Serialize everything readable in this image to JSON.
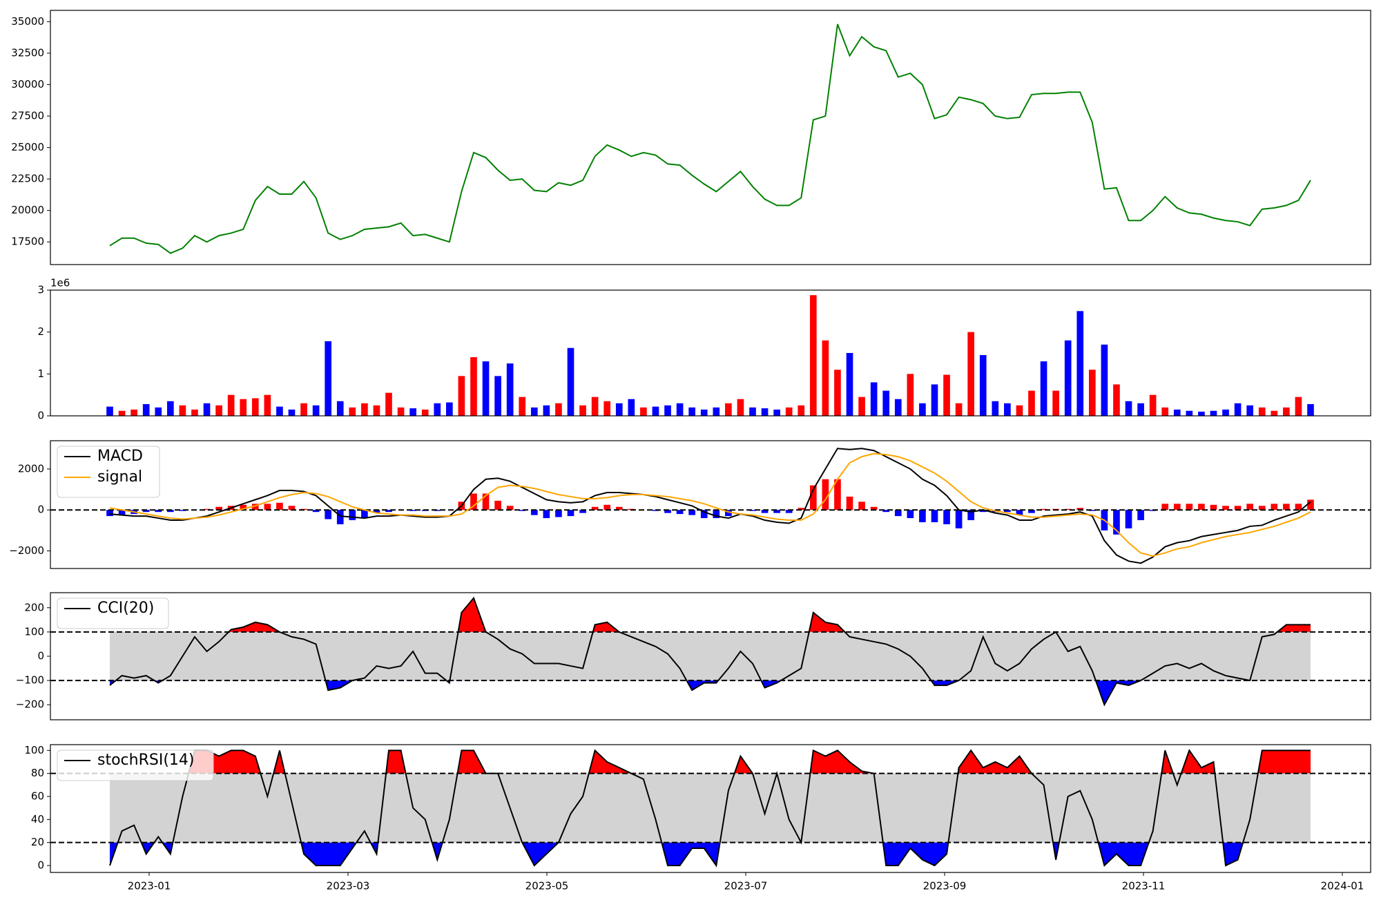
{
  "chart_data": [
    {
      "type": "line",
      "ylim": [
        15700,
        35900
      ],
      "yticks": [
        17500,
        20000,
        22500,
        25000,
        27500,
        30000,
        32500,
        35000
      ],
      "series": [
        {
          "color": "green",
          "values": [
            17200,
            17800,
            17800,
            17400,
            17300,
            16600,
            17000,
            18000,
            17500,
            18000,
            18200,
            18500,
            20800,
            21900,
            21300,
            21300,
            22300,
            21000,
            18200,
            17700,
            18000,
            18500,
            18600,
            18700,
            19000,
            18000,
            18100,
            17800,
            17500,
            21500,
            24600,
            24200,
            23200,
            22400,
            22500,
            21600,
            21500,
            22200,
            22000,
            22400,
            24300,
            25200,
            24800,
            24300,
            24600,
            24400,
            23700,
            23600,
            22800,
            22100,
            21500,
            22300,
            23100,
            21900,
            20900,
            20400,
            20400,
            21000,
            27200,
            27500,
            34800,
            32300,
            33800,
            33000,
            32700,
            30600,
            30900,
            30000,
            27300,
            27600,
            29000,
            28800,
            28500,
            27500,
            27300,
            27400,
            29200,
            29300,
            29300,
            29400,
            29400,
            27000,
            21700,
            21800,
            19200,
            19200,
            20000,
            21100,
            20200,
            19800,
            19700,
            19400,
            19200,
            19100,
            18800,
            20100,
            20200,
            20400,
            20800,
            22400
          ]
        }
      ]
    },
    {
      "type": "bar",
      "ylim": [
        0,
        3
      ],
      "yticks": [
        0,
        1,
        2,
        3
      ],
      "offset_label": "1e6",
      "values": [
        0.22,
        0.12,
        0.15,
        0.28,
        0.2,
        0.35,
        0.25,
        0.15,
        0.3,
        0.25,
        0.5,
        0.4,
        0.42,
        0.5,
        0.22,
        0.15,
        0.3,
        0.25,
        1.78,
        0.35,
        0.2,
        0.3,
        0.25,
        0.55,
        0.2,
        0.18,
        0.15,
        0.3,
        0.32,
        0.95,
        1.4,
        1.3,
        0.95,
        1.25,
        0.45,
        0.2,
        0.25,
        0.3,
        1.62,
        0.25,
        0.45,
        0.35,
        0.3,
        0.4,
        0.2,
        0.22,
        0.25,
        0.3,
        0.2,
        0.15,
        0.2,
        0.3,
        0.4,
        0.2,
        0.18,
        0.15,
        0.2,
        0.25,
        2.88,
        1.8,
        1.1,
        1.5,
        0.45,
        0.8,
        0.6,
        0.4,
        1.0,
        0.3,
        0.75,
        0.98,
        0.3,
        2.0,
        1.45,
        0.35,
        0.3,
        0.25,
        0.6,
        1.3,
        0.6,
        1.8,
        2.5,
        1.1,
        1.7,
        0.75,
        0.35,
        0.3,
        0.5,
        0.2,
        0.15,
        0.12,
        0.1,
        0.12,
        0.15,
        0.3,
        0.25,
        0.2,
        0.12,
        0.2,
        0.45,
        0.28
      ],
      "colors": [
        "blue",
        "red",
        "red",
        "blue",
        "blue",
        "blue",
        "red",
        "red",
        "blue",
        "red",
        "red",
        "red",
        "red",
        "red",
        "blue",
        "blue",
        "red",
        "blue",
        "blue",
        "blue",
        "red",
        "red",
        "red",
        "red",
        "red",
        "blue",
        "red",
        "blue",
        "blue",
        "red",
        "red",
        "blue",
        "blue",
        "blue",
        "red",
        "blue",
        "blue",
        "red",
        "blue",
        "red",
        "red",
        "red",
        "blue",
        "blue",
        "red",
        "blue",
        "blue",
        "blue",
        "blue",
        "blue",
        "blue",
        "red",
        "red",
        "blue",
        "blue",
        "blue",
        "red",
        "red",
        "red",
        "red",
        "red",
        "blue",
        "red",
        "blue",
        "blue",
        "blue",
        "red",
        "blue",
        "blue",
        "red",
        "red",
        "red",
        "blue",
        "blue",
        "blue",
        "red",
        "red",
        "blue",
        "red",
        "blue",
        "blue",
        "red",
        "blue",
        "red",
        "blue",
        "blue",
        "red",
        "red",
        "blue",
        "blue",
        "blue",
        "blue",
        "blue",
        "blue",
        "blue",
        "red",
        "red",
        "red",
        "red",
        "blue"
      ]
    },
    {
      "type": "line",
      "ylim": [
        -2860,
        3380
      ],
      "yticks": [
        {
          "value": -2000,
          "label": "−2000"
        },
        0,
        2000
      ],
      "hlines": [
        0
      ],
      "series": [
        {
          "name": "MACD",
          "color": "black",
          "values": [
            -200,
            -250,
            -300,
            -300,
            -400,
            -500,
            -500,
            -400,
            -300,
            -100,
            100,
            300,
            500,
            700,
            950,
            950,
            900,
            700,
            200,
            -300,
            -350,
            -400,
            -300,
            -300,
            -250,
            -300,
            -350,
            -350,
            -300,
            200,
            1000,
            1500,
            1550,
            1400,
            1100,
            800,
            500,
            400,
            350,
            400,
            700,
            850,
            850,
            800,
            750,
            650,
            500,
            350,
            200,
            -100,
            -300,
            -400,
            -200,
            -300,
            -500,
            -600,
            -650,
            -400,
            1000,
            2000,
            3000,
            2950,
            3000,
            2900,
            2600,
            2300,
            2000,
            1500,
            1200,
            700,
            0,
            -100,
            0,
            -150,
            -250,
            -500,
            -500,
            -300,
            -250,
            -200,
            -100,
            -300,
            -1500,
            -2200,
            -2500,
            -2600,
            -2300,
            -1800,
            -1600,
            -1500,
            -1300,
            -1200,
            -1100,
            -1000,
            -800,
            -750,
            -500,
            -300,
            -100,
            400
          ]
        },
        {
          "name": "signal",
          "color": "orange",
          "values": [
            100,
            0,
            -100,
            -200,
            -300,
            -400,
            -450,
            -400,
            -350,
            -250,
            -100,
            50,
            200,
            400,
            600,
            750,
            850,
            800,
            650,
            400,
            150,
            0,
            -150,
            -200,
            -250,
            -250,
            -300,
            -300,
            -300,
            -200,
            200,
            700,
            1100,
            1200,
            1150,
            1050,
            900,
            750,
            650,
            550,
            550,
            600,
            700,
            750,
            750,
            700,
            650,
            550,
            450,
            300,
            100,
            -100,
            -200,
            -250,
            -350,
            -450,
            -500,
            -500,
            -200,
            500,
            1500,
            2300,
            2600,
            2750,
            2700,
            2600,
            2400,
            2100,
            1800,
            1400,
            900,
            400,
            100,
            -50,
            -150,
            -250,
            -350,
            -350,
            -300,
            -250,
            -200,
            -250,
            -500,
            -1000,
            -1600,
            -2100,
            -2250,
            -2100,
            -1900,
            -1800,
            -1600,
            -1450,
            -1300,
            -1200,
            -1100,
            -950,
            -800,
            -600,
            -400,
            -100
          ]
        }
      ],
      "histogram": {
        "positive_color": "red",
        "negative_color": "blue",
        "values": [
          -300,
          -250,
          -200,
          -100,
          -100,
          -100,
          -50,
          0,
          50,
          150,
          200,
          250,
          300,
          300,
          350,
          200,
          50,
          -100,
          -450,
          -700,
          -500,
          -400,
          -150,
          -100,
          0,
          -50,
          -50,
          -50,
          0,
          400,
          800,
          800,
          450,
          200,
          -50,
          -250,
          -400,
          -350,
          -300,
          -150,
          150,
          250,
          150,
          50,
          0,
          -50,
          -150,
          -200,
          -250,
          -400,
          -400,
          -300,
          0,
          -50,
          -150,
          -150,
          -150,
          100,
          1200,
          1500,
          1500,
          650,
          400,
          150,
          -100,
          -300,
          -400,
          -600,
          -600,
          -700,
          -900,
          -500,
          -100,
          -100,
          -100,
          -250,
          -150,
          50,
          50,
          50,
          100,
          -50,
          -1000,
          -1200,
          -900,
          -500,
          -50,
          300,
          300,
          300,
          300,
          250,
          200,
          200,
          300,
          200,
          300,
          300,
          300,
          500
        ]
      }
    },
    {
      "type": "band",
      "ylim": [
        -262,
        262
      ],
      "yticks": [
        {
          "value": -200,
          "label": "−200"
        },
        {
          "value": -100,
          "label": "−100"
        },
        0,
        100,
        200
      ],
      "hlines": [
        -100,
        100
      ],
      "fill_colors": {
        "between": "lightgray",
        "above": "red",
        "below": "blue"
      },
      "series": [
        {
          "name": "CCI(20)",
          "color": "black",
          "values": [
            -120,
            -80,
            -90,
            -80,
            -110,
            -80,
            0,
            80,
            20,
            60,
            110,
            120,
            140,
            130,
            100,
            80,
            70,
            50,
            -140,
            -130,
            -100,
            -90,
            -40,
            -50,
            -40,
            20,
            -70,
            -70,
            -110,
            180,
            240,
            100,
            70,
            30,
            10,
            -30,
            -30,
            -30,
            -40,
            -50,
            130,
            140,
            100,
            80,
            60,
            40,
            10,
            -50,
            -140,
            -110,
            -110,
            -50,
            20,
            -30,
            -130,
            -110,
            -80,
            -50,
            180,
            140,
            130,
            80,
            70,
            60,
            50,
            30,
            0,
            -50,
            -120,
            -120,
            -100,
            -60,
            80,
            -30,
            -60,
            -30,
            30,
            70,
            100,
            20,
            40,
            -60,
            -200,
            -110,
            -120,
            -100,
            -70,
            -40,
            -30,
            -50,
            -30,
            -60,
            -80,
            -90,
            -100,
            80,
            90,
            130,
            130,
            130
          ]
        }
      ]
    },
    {
      "type": "band",
      "ylim": [
        -6,
        105
      ],
      "yticks": [
        0,
        20,
        40,
        60,
        80,
        100
      ],
      "hlines": [
        20,
        80
      ],
      "fill_colors": {
        "between": "lightgray",
        "above": "red",
        "below": "blue"
      },
      "xticks": [
        "2023-01",
        "2023-03",
        "2023-05",
        "2023-07",
        "2023-09",
        "2023-11",
        "2024-01"
      ],
      "series": [
        {
          "name": "stochRSI(14)",
          "color": "black",
          "values": [
            0,
            30,
            35,
            10,
            25,
            10,
            60,
            100,
            100,
            95,
            100,
            100,
            95,
            60,
            100,
            55,
            10,
            0,
            0,
            0,
            15,
            30,
            10,
            100,
            100,
            50,
            40,
            5,
            40,
            100,
            100,
            80,
            80,
            50,
            20,
            0,
            10,
            20,
            45,
            60,
            100,
            90,
            85,
            80,
            75,
            40,
            0,
            0,
            15,
            15,
            0,
            65,
            95,
            80,
            45,
            80,
            40,
            20,
            100,
            95,
            100,
            90,
            82,
            80,
            0,
            0,
            15,
            5,
            0,
            10,
            85,
            100,
            85,
            90,
            85,
            95,
            80,
            70,
            5,
            60,
            65,
            40,
            0,
            10,
            0,
            0,
            30,
            100,
            70,
            100,
            85,
            90,
            0,
            5,
            40,
            100,
            100,
            100,
            100,
            100
          ]
        }
      ]
    }
  ]
}
